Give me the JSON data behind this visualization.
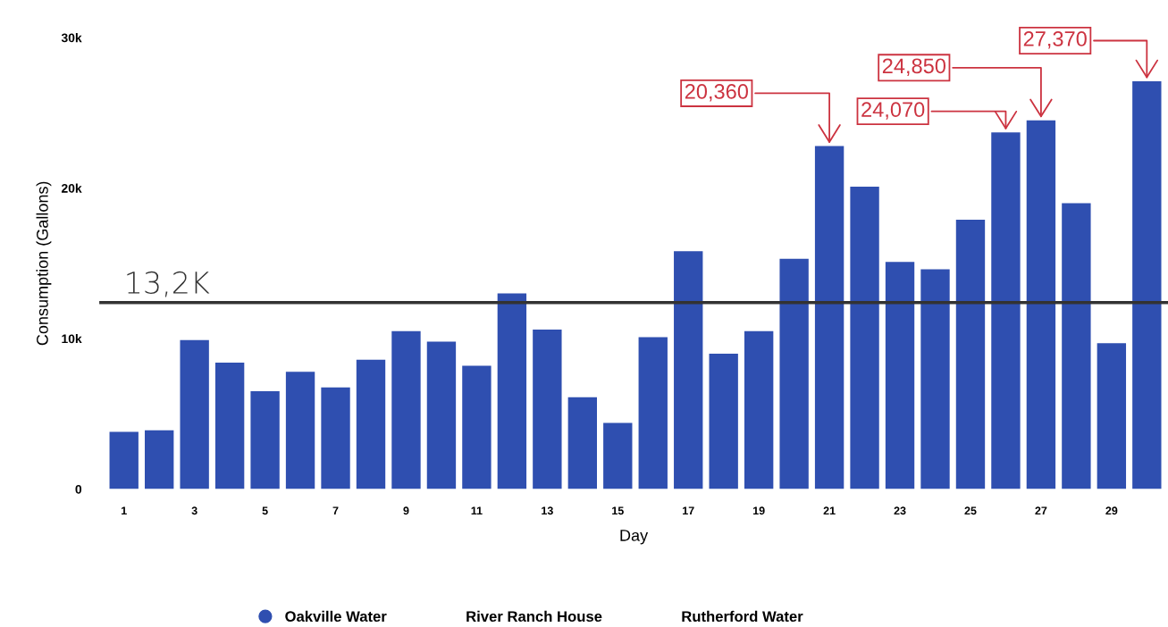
{
  "chart_data": {
    "type": "bar",
    "xlabel": "Day",
    "ylabel": "Consumption (Gallons)",
    "categories": [
      "1",
      null,
      "3",
      null,
      "5",
      null,
      "7",
      null,
      "9",
      null,
      "11",
      null,
      "13",
      null,
      "15",
      null,
      "17",
      null,
      "19",
      null,
      "21",
      null,
      "23",
      null,
      "25",
      null,
      "27",
      null,
      "29",
      null
    ],
    "series": [
      {
        "name": "Oakville Water",
        "color": "#2f4fb0",
        "values": [
          3800,
          3900,
          9900,
          8400,
          6500,
          7800,
          6750,
          8600,
          10500,
          9800,
          8200,
          13000,
          10600,
          6100,
          4400,
          10100,
          15800,
          9000,
          10500,
          15300,
          22800,
          20100,
          15100,
          14600,
          17900,
          23700,
          24500,
          19000,
          9700,
          27100
        ]
      },
      {
        "name": "River Ranch House",
        "values": [
          null,
          null,
          null,
          null,
          null,
          null,
          null,
          null,
          null,
          null,
          null,
          null,
          null,
          null,
          null,
          null,
          null,
          null,
          null,
          null,
          null,
          null,
          null,
          null,
          null,
          null,
          null,
          null,
          null,
          null
        ]
      },
      {
        "name": "Rutherford Water",
        "values": [
          null,
          null,
          null,
          null,
          null,
          null,
          null,
          null,
          null,
          null,
          null,
          null,
          null,
          null,
          null,
          null,
          null,
          null,
          null,
          null,
          null,
          null,
          null,
          null,
          null,
          null,
          null,
          null,
          null,
          null
        ]
      }
    ],
    "ylim": [
      0,
      30000
    ],
    "yticks": [
      0,
      {
        "value": 10000,
        "label": "10k"
      },
      {
        "value": 20000,
        "label": "20k"
      },
      {
        "value": 30000,
        "label": "30k"
      }
    ],
    "ref_lines": [
      {
        "axis": "y",
        "value": 12400,
        "label": "13,2K",
        "color": "#333333"
      }
    ],
    "annotations": [
      {
        "text": "20,360",
        "x": "21",
        "y": 22800
      },
      "24,070",
      {
        "text": "24,850",
        "x": "27",
        "y": 24500
      },
      "27,370"
    ],
    "grid": false,
    "legend": "bottom"
  }
}
